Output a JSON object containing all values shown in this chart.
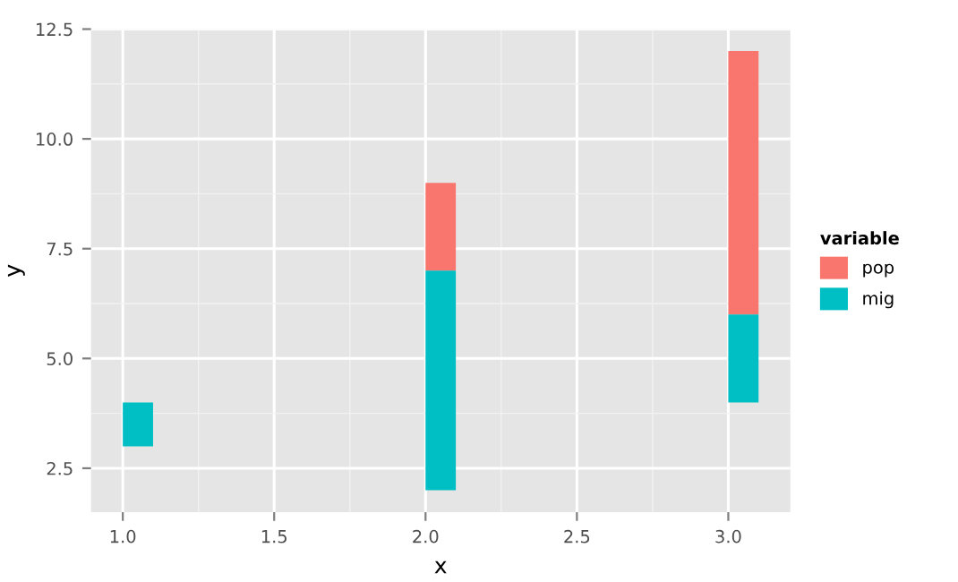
{
  "chart_data": {
    "type": "bar",
    "xlabel": "x",
    "ylabel": "y",
    "legend_title": "variable",
    "x": [
      1.05,
      2.05,
      3.05
    ],
    "series": [
      {
        "name": "pop",
        "color": "#f8766d",
        "values": [
          null,
          2,
          6
        ],
        "base": [
          null,
          7,
          6
        ]
      },
      {
        "name": "mig",
        "color": "#00bfc4",
        "values": [
          1,
          5,
          2
        ],
        "base": [
          3,
          2,
          4
        ]
      }
    ],
    "xlim": [
      0.895,
      3.205
    ],
    "xticks": [
      {
        "value": 1,
        "label": "1.0"
      },
      1.5,
      {
        "value": 2,
        "label": "2.0"
      },
      2.5,
      {
        "value": 3,
        "label": "3.0"
      }
    ],
    "ylim": [
      1.5,
      12.5
    ],
    "yticks": [
      2.5,
      {
        "value": 5,
        "label": "5.0"
      },
      7.5,
      {
        "value": 10,
        "label": "10.0"
      },
      12.5
    ],
    "grid": true,
    "legend": "right"
  }
}
